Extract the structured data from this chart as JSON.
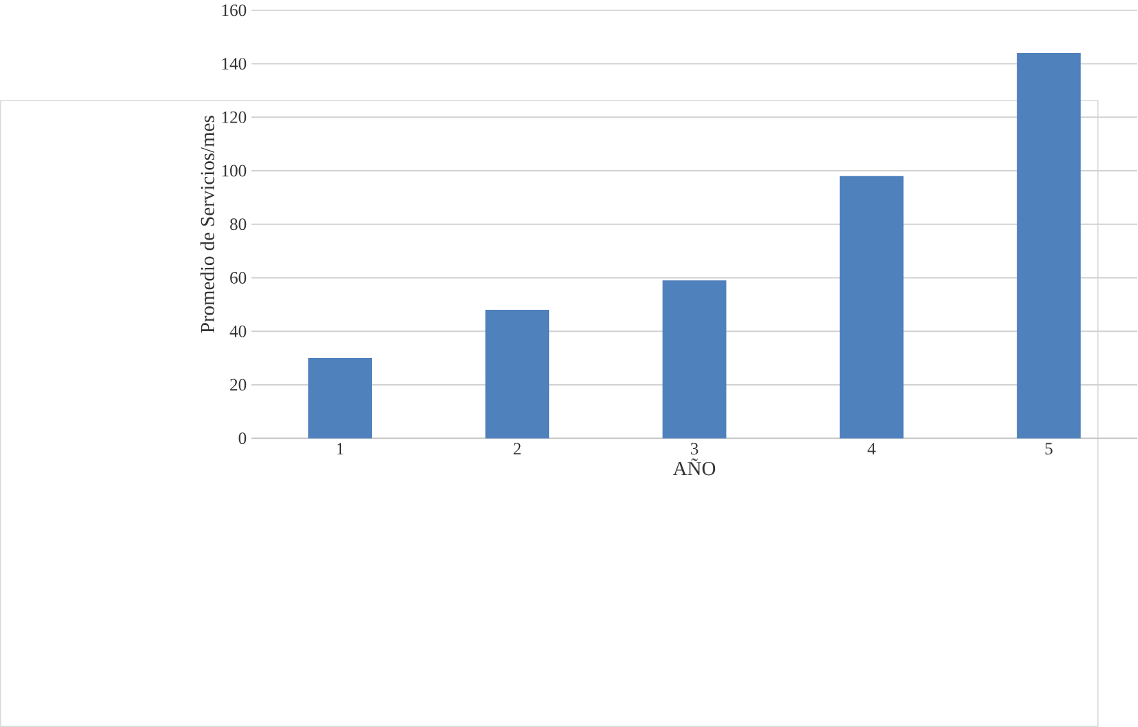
{
  "chart_data": {
    "type": "bar",
    "xlabel": "AÑO",
    "ylabel": "Promedio de Servicios/mes",
    "categories": [
      "1",
      "2",
      "3",
      "4",
      "5"
    ],
    "values": [
      30,
      48,
      59,
      98,
      144
    ],
    "color": "#4f81bd",
    "ylim": [
      0,
      160
    ],
    "yticks": [
      0,
      20,
      40,
      60,
      80,
      100,
      120,
      140,
      160
    ],
    "grid": "y"
  }
}
